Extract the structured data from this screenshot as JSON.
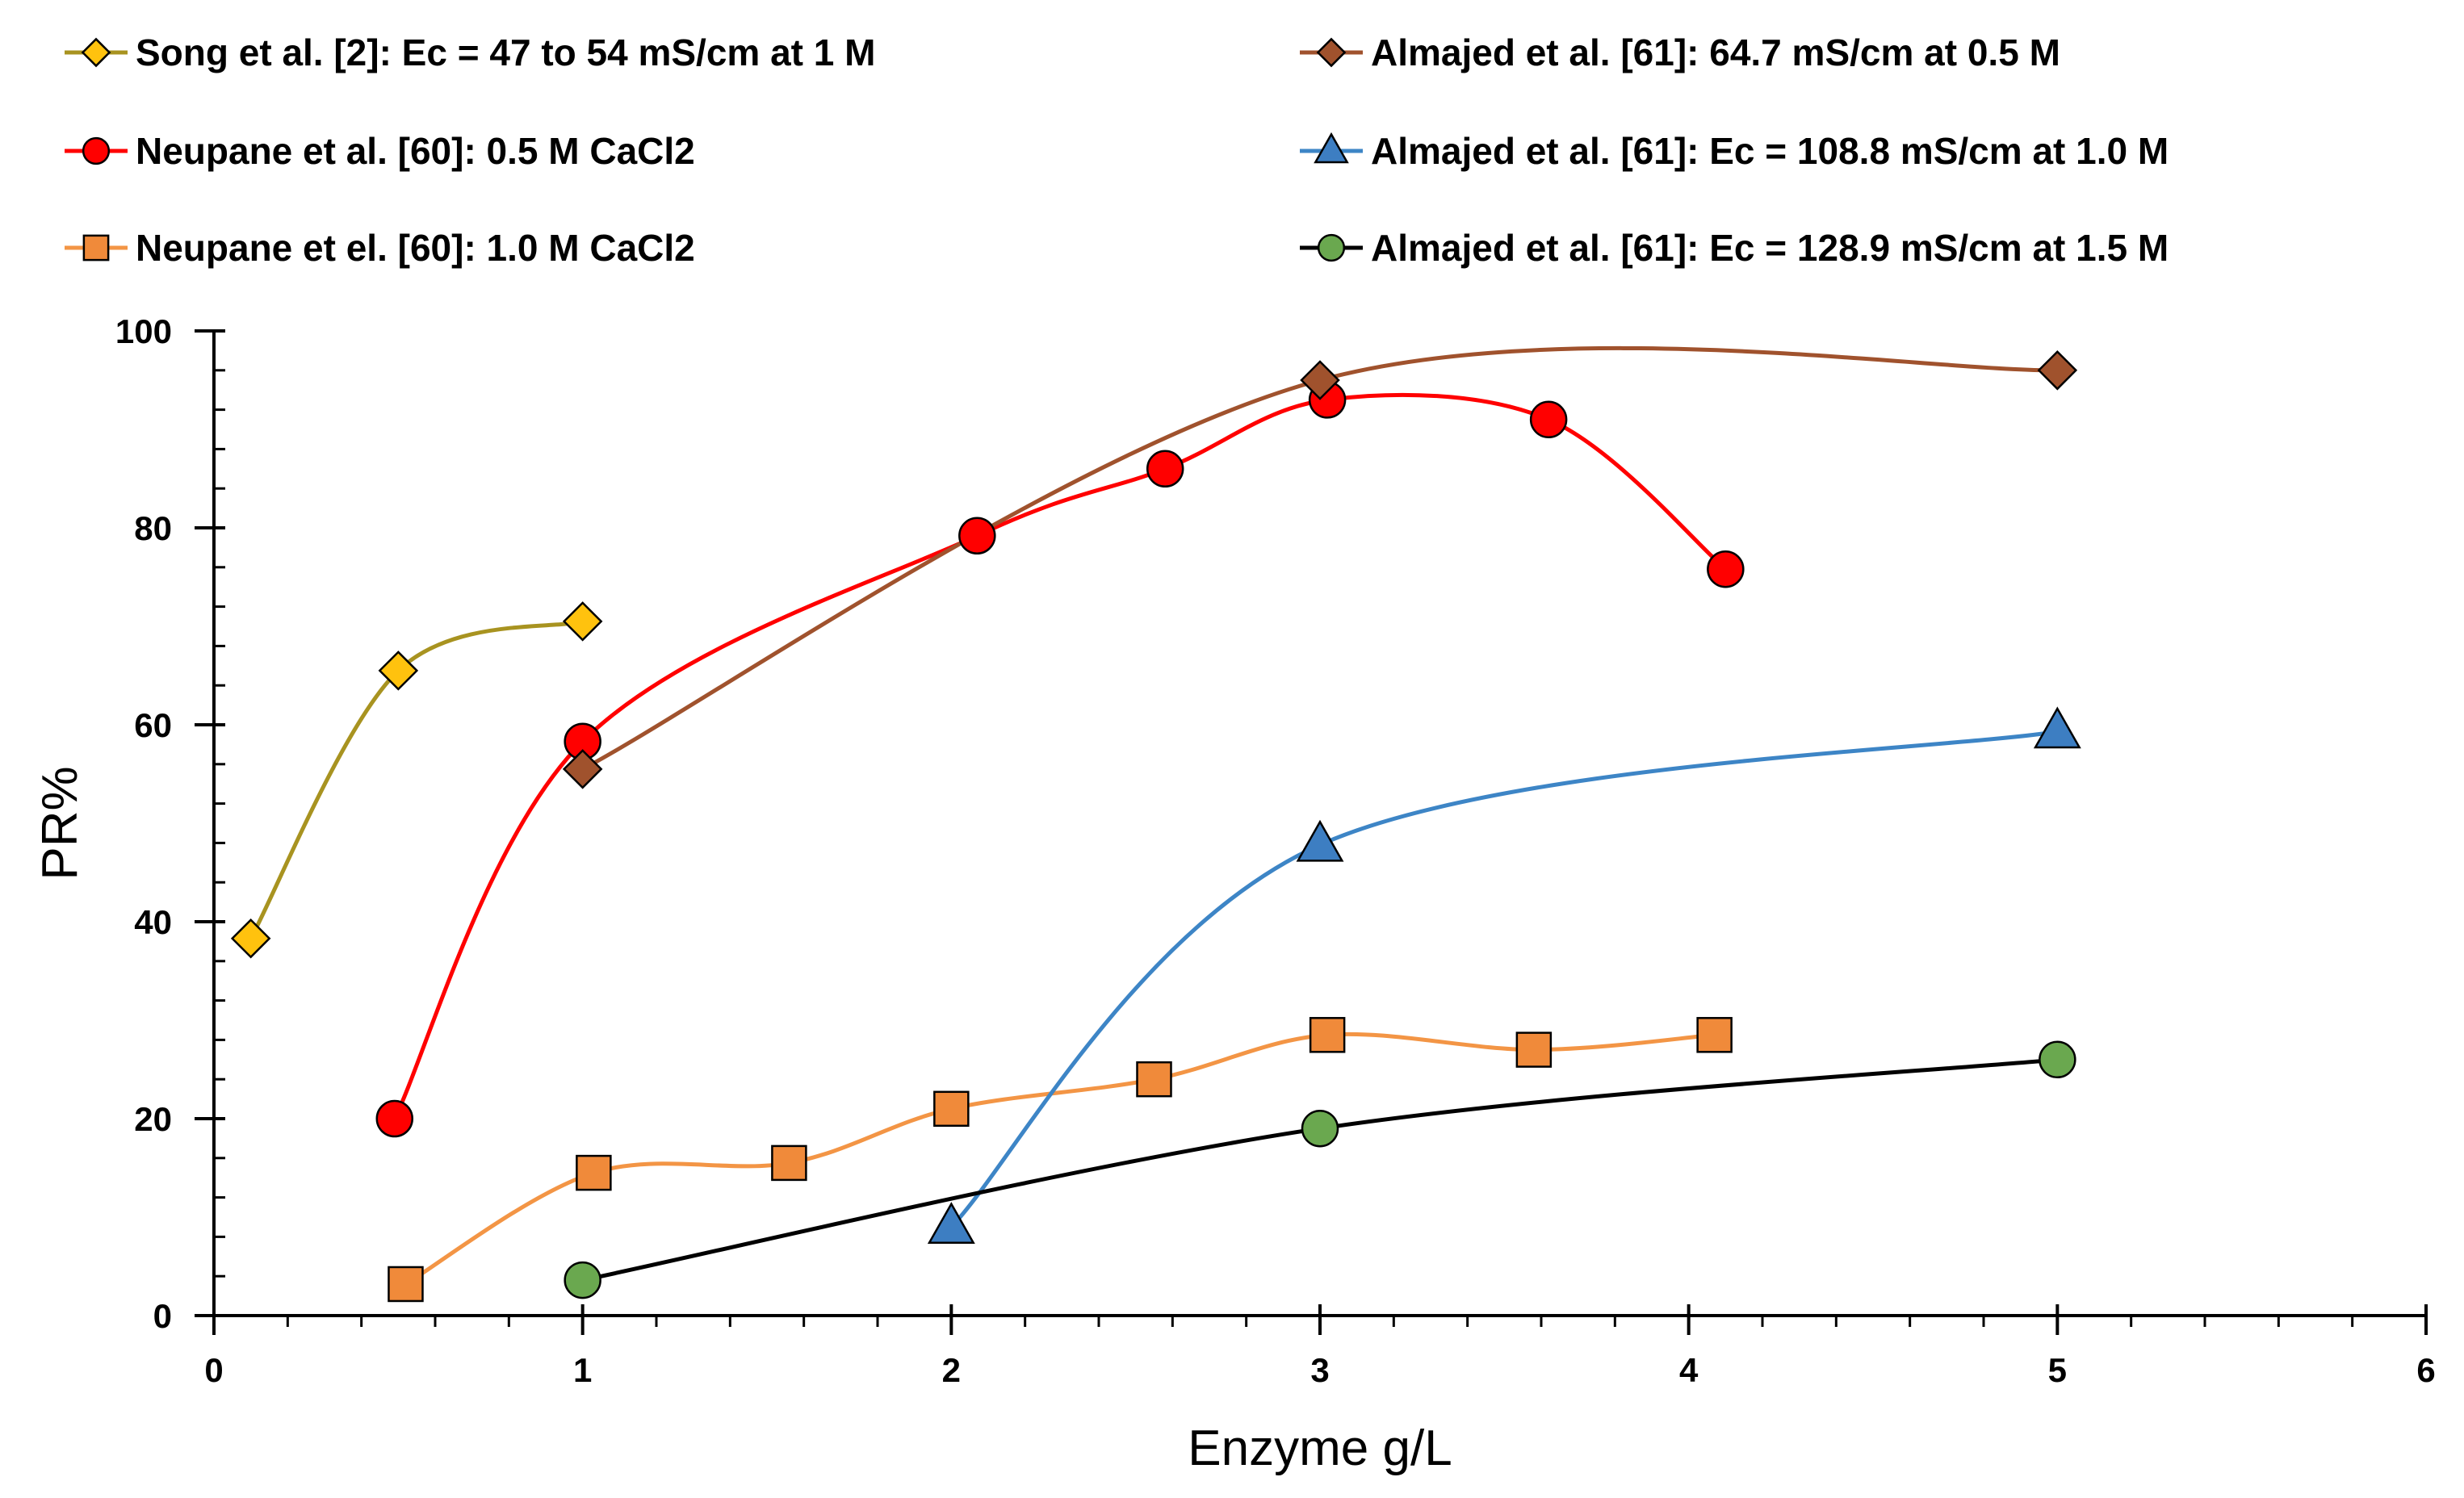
{
  "chart_data": {
    "type": "line",
    "title": "",
    "xlabel": "Enzyme g/L",
    "ylabel": "PR%",
    "xlim": [
      0,
      6
    ],
    "ylim": [
      0,
      100
    ],
    "x_ticks": [
      0,
      1,
      2,
      3,
      4,
      5,
      6
    ],
    "y_ticks": [
      0,
      20,
      40,
      60,
      80,
      100
    ],
    "x_tick_labels": [
      "0",
      "1",
      "2",
      "3",
      "4",
      "5",
      "6"
    ],
    "y_tick_labels": [
      "0",
      "20",
      "40",
      "60",
      "80",
      "100"
    ],
    "x_minor_step": 0.2,
    "y_minor_step": 4,
    "grid": false,
    "legend_position": "top",
    "series": [
      {
        "name": "Song et al. [2]: Ec = 47 to 54 mS/cm at 1 M",
        "marker": "diamond",
        "line_color": "#A89320",
        "marker_fill": "#FFC20E",
        "points": [
          [
            0.1,
            38.3
          ],
          [
            0.5,
            65.5
          ],
          [
            1.0,
            70.5
          ]
        ]
      },
      {
        "name": "Neupane et al. [60]: 0.5 M CaCl2",
        "marker": "circle",
        "line_color": "#FF0000",
        "marker_fill": "#FF0000",
        "points": [
          [
            0.49,
            20.0
          ],
          [
            1.0,
            58.3
          ],
          [
            2.07,
            79.2
          ],
          [
            2.58,
            86.0
          ],
          [
            3.02,
            93.0
          ],
          [
            3.62,
            91.0
          ],
          [
            4.1,
            75.8
          ]
        ]
      },
      {
        "name": "Neupane et el. [60]: 1.0 M CaCl2",
        "marker": "square",
        "line_color": "#F39545",
        "marker_fill": "#F08A3A",
        "points": [
          [
            0.52,
            3.2
          ],
          [
            1.03,
            14.5
          ],
          [
            1.56,
            15.5
          ],
          [
            2.0,
            21.0
          ],
          [
            2.55,
            24.0
          ],
          [
            3.02,
            28.5
          ],
          [
            3.58,
            27.0
          ],
          [
            4.07,
            28.5
          ]
        ]
      },
      {
        "name": "Almajed et al. [61]: 64.7 mS/cm at 0.5 M",
        "marker": "diamond",
        "line_color": "#A0522D",
        "marker_fill": "#A0522D",
        "points": [
          [
            1.0,
            55.5
          ],
          [
            3.0,
            95.0
          ],
          [
            5.0,
            96.0
          ]
        ]
      },
      {
        "name": "Almajed et al. [61]: Ec = 108.8 mS/cm at 1.0 M",
        "marker": "triangle",
        "line_color": "#3D85C6",
        "marker_fill": "#3D7EC2",
        "points": [
          [
            2.0,
            9.0
          ],
          [
            3.0,
            47.8
          ],
          [
            5.0,
            59.3
          ]
        ]
      },
      {
        "name": "Almajed et al. [61]: Ec = 128.9 mS/cm at 1.5 M",
        "marker": "circle",
        "line_color": "#000000",
        "marker_fill": "#6AA84F",
        "points": [
          [
            1.0,
            3.6
          ],
          [
            3.0,
            19.0
          ],
          [
            5.0,
            26.0
          ]
        ]
      }
    ]
  }
}
